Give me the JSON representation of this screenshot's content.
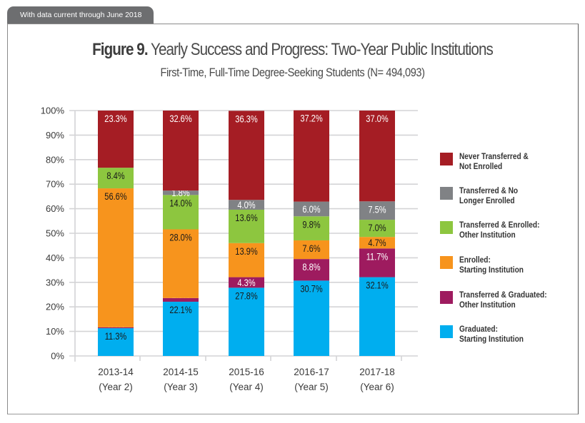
{
  "header": {
    "tab_label": "With data current through June 2018"
  },
  "figure": {
    "number_label": "Figure 9.",
    "title": "Yearly Success and Progress: Two-Year Public Institutions",
    "subtitle": "First-Time, Full-Time Degree-Seeking Students (N= 494,093)"
  },
  "chart_data": {
    "type": "bar",
    "stacked": true,
    "title": "Figure 9. Yearly Success and Progress: Two-Year Public Institutions",
    "subtitle": "First-Time, Full-Time Degree-Seeking Students (N= 494,093)",
    "xlabel": "",
    "ylabel": "",
    "ylim": [
      0,
      100
    ],
    "yticks": [
      "0%",
      "10%",
      "20%",
      "30%",
      "40%",
      "50%",
      "60%",
      "70%",
      "80%",
      "90%",
      "100%"
    ],
    "grid": true,
    "legend_position": "right",
    "categories": [
      {
        "year": "2013-14",
        "label": "(Year 2)"
      },
      {
        "year": "2014-15",
        "label": "(Year 3)"
      },
      {
        "year": "2015-16",
        "label": "(Year 4)"
      },
      {
        "year": "2016-17",
        "label": "(Year 5)"
      },
      {
        "year": "2017-18",
        "label": "(Year 6)"
      }
    ],
    "series": [
      {
        "name": "Graduated: Starting Institution",
        "legend_lines": [
          "Graduated:",
          "Starting Institution"
        ],
        "color": "#00aeef",
        "label_color": "#1a1a1a",
        "values": [
          11.3,
          22.1,
          27.8,
          30.7,
          32.1
        ],
        "labels": [
          "11.3%",
          "22.1%",
          "27.8%",
          "30.7%",
          "32.1%"
        ]
      },
      {
        "name": "Transferred & Graduated: Other Institution",
        "legend_lines": [
          "Transferred & Graduated:",
          "Other Institution"
        ],
        "color": "#9e1b5f",
        "label_color": "#ffffff",
        "values": [
          0.4,
          1.5,
          4.3,
          8.8,
          11.7
        ],
        "labels": [
          "0.4%",
          "1.5%",
          "4.3%",
          "8.8%",
          "11.7%"
        ]
      },
      {
        "name": "Enrolled: Starting Institution",
        "legend_lines": [
          "Enrolled:",
          "Starting Institution"
        ],
        "color": "#f7941d",
        "label_color": "#1a1a1a",
        "values": [
          56.6,
          28.0,
          13.9,
          7.6,
          4.7
        ],
        "labels": [
          "56.6%",
          "28.0%",
          "13.9%",
          "7.6%",
          "4.7%"
        ]
      },
      {
        "name": "Transferred & Enrolled: Other Institution",
        "legend_lines": [
          "Transferred & Enrolled:",
          "Other Institution"
        ],
        "color": "#8dc63f",
        "label_color": "#1a1a1a",
        "values": [
          8.4,
          14.0,
          13.6,
          9.8,
          7.0
        ],
        "labels": [
          "8.4%",
          "14.0%",
          "13.6%",
          "9.8%",
          "7.0%"
        ]
      },
      {
        "name": "Transferred & No Longer Enrolled",
        "legend_lines": [
          "Transferred & No",
          "Longer Enrolled"
        ],
        "color": "#808285",
        "label_color": "#ffffff",
        "values": [
          0,
          1.8,
          4.0,
          6.0,
          7.5
        ],
        "labels": [
          "",
          "1.8%",
          "4.0%",
          "6.0%",
          "7.5%"
        ]
      },
      {
        "name": "Never Transferred & Not Enrolled",
        "legend_lines": [
          "Never Transferred &",
          "Not Enrolled"
        ],
        "color": "#a51d24",
        "label_color": "#ffffff",
        "values": [
          23.3,
          32.6,
          36.3,
          37.2,
          37.0
        ],
        "labels": [
          "23.3%",
          "32.6%",
          "36.3%",
          "37.2%",
          "37.0%"
        ]
      }
    ],
    "legend_order": [
      5,
      4,
      3,
      2,
      1,
      0
    ]
  }
}
